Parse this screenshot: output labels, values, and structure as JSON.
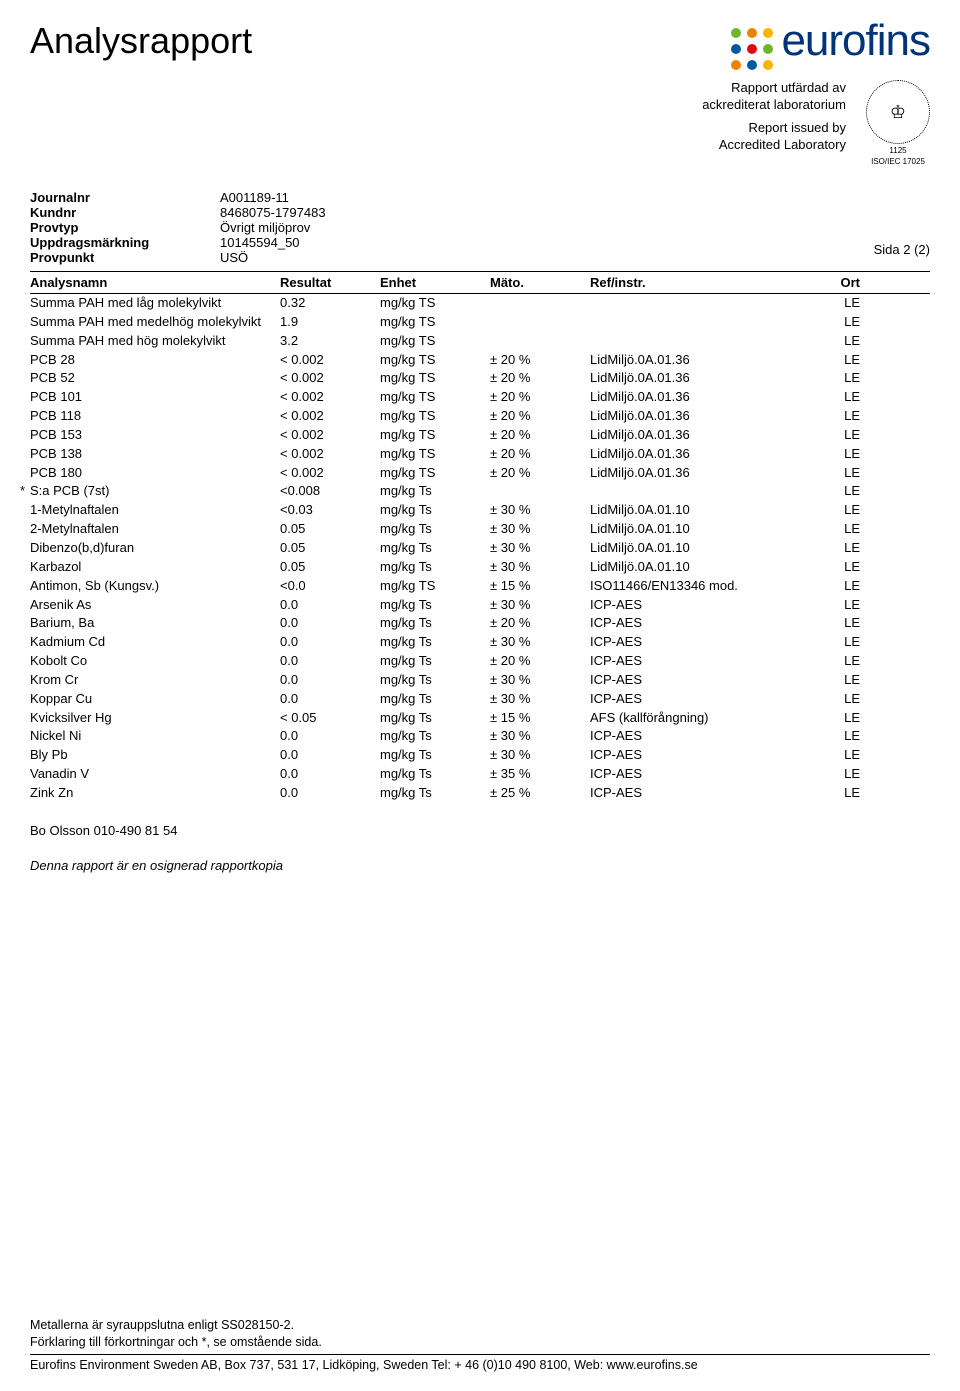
{
  "title": "Analysrapport",
  "logo": {
    "text": "eurofins",
    "text_color": "#003478",
    "dot_colors": [
      "#6fb52c",
      "#f08000",
      "#f7b500",
      "#005aa0",
      "#e30613",
      "#6fb52c",
      "#f08000",
      "#005aa0",
      "#f7b500"
    ]
  },
  "subheader": {
    "line1": "Rapport utfärdad av",
    "line2": "ackrediterat laboratorium",
    "line3": "Report issued by",
    "line4": "Accredited Laboratory",
    "accred_top": "SWEDAC",
    "accred_center": "♔",
    "accred_sub1": "1125",
    "accred_sub2": "ISO/IEC 17025"
  },
  "meta": [
    {
      "label": "Journalnr",
      "value": "A001189-11"
    },
    {
      "label": "Kundnr",
      "value": "8468075-1797483"
    },
    {
      "label": "Provtyp",
      "value": "Övrigt miljöprov"
    },
    {
      "label": "Uppdragsmärkning",
      "value": "10145594_50"
    },
    {
      "label": "Provpunkt",
      "value": "USÖ"
    }
  ],
  "page_num": "Sida 2 (2)",
  "columns": {
    "name": "Analysnamn",
    "res": "Resultat",
    "unit": "Enhet",
    "mato": "Mäto.",
    "ref": "Ref/instr.",
    "ort": "Ort"
  },
  "rows": [
    {
      "star": "",
      "name": "Summa PAH med låg molekylvikt",
      "res": "0.32",
      "unit": "mg/kg TS",
      "mato": "",
      "ref": "",
      "ort": "LE"
    },
    {
      "star": "",
      "name": "Summa PAH med medelhög molekylvikt",
      "res": "1.9",
      "unit": "mg/kg TS",
      "mato": "",
      "ref": "",
      "ort": "LE"
    },
    {
      "star": "",
      "name": "Summa PAH med hög molekylvikt",
      "res": "3.2",
      "unit": "mg/kg TS",
      "mato": "",
      "ref": "",
      "ort": "LE"
    },
    {
      "star": "",
      "name": "PCB 28",
      "res": "< 0.002",
      "unit": "mg/kg TS",
      "mato": "± 20 %",
      "ref": "LidMiljö.0A.01.36",
      "ort": "LE"
    },
    {
      "star": "",
      "name": "PCB 52",
      "res": "< 0.002",
      "unit": "mg/kg TS",
      "mato": "± 20 %",
      "ref": "LidMiljö.0A.01.36",
      "ort": "LE"
    },
    {
      "star": "",
      "name": "PCB 101",
      "res": "< 0.002",
      "unit": "mg/kg TS",
      "mato": "± 20 %",
      "ref": "LidMiljö.0A.01.36",
      "ort": "LE"
    },
    {
      "star": "",
      "name": "PCB 118",
      "res": "< 0.002",
      "unit": "mg/kg TS",
      "mato": "± 20 %",
      "ref": "LidMiljö.0A.01.36",
      "ort": "LE"
    },
    {
      "star": "",
      "name": "PCB 153",
      "res": "< 0.002",
      "unit": "mg/kg TS",
      "mato": "± 20 %",
      "ref": "LidMiljö.0A.01.36",
      "ort": "LE"
    },
    {
      "star": "",
      "name": "PCB 138",
      "res": "< 0.002",
      "unit": "mg/kg TS",
      "mato": "± 20 %",
      "ref": "LidMiljö.0A.01.36",
      "ort": "LE"
    },
    {
      "star": "",
      "name": "PCB 180",
      "res": "< 0.002",
      "unit": "mg/kg TS",
      "mato": "± 20 %",
      "ref": "LidMiljö.0A.01.36",
      "ort": "LE"
    },
    {
      "star": "*",
      "name": "S:a PCB (7st)",
      "res": "<0.008",
      "unit": "mg/kg Ts",
      "mato": "",
      "ref": "",
      "ort": "LE"
    },
    {
      "star": "",
      "name": "1-Metylnaftalen",
      "res": "<0.03",
      "unit": "mg/kg Ts",
      "mato": "± 30 %",
      "ref": "LidMiljö.0A.01.10",
      "ort": "LE"
    },
    {
      "star": "",
      "name": "2-Metylnaftalen",
      "res": "0.05",
      "unit": "mg/kg Ts",
      "mato": "± 30 %",
      "ref": "LidMiljö.0A.01.10",
      "ort": "LE"
    },
    {
      "star": "",
      "name": "Dibenzo(b,d)furan",
      "res": "0.05",
      "unit": "mg/kg Ts",
      "mato": "± 30 %",
      "ref": "LidMiljö.0A.01.10",
      "ort": "LE"
    },
    {
      "star": "",
      "name": "Karbazol",
      "res": "0.05",
      "unit": "mg/kg Ts",
      "mato": "± 30 %",
      "ref": "LidMiljö.0A.01.10",
      "ort": "LE"
    },
    {
      "star": "",
      "name": "Antimon, Sb (Kungsv.)",
      "res": "<0.0",
      "unit": "mg/kg TS",
      "mato": "± 15 %",
      "ref": "ISO11466/EN13346 mod.",
      "ort": "LE"
    },
    {
      "star": "",
      "name": "Arsenik As",
      "res": "0.0",
      "unit": "mg/kg Ts",
      "mato": "± 30 %",
      "ref": "ICP-AES",
      "ort": "LE"
    },
    {
      "star": "",
      "name": "Barium, Ba",
      "res": "0.0",
      "unit": "mg/kg Ts",
      "mato": "± 20 %",
      "ref": "ICP-AES",
      "ort": "LE"
    },
    {
      "star": "",
      "name": "Kadmium Cd",
      "res": "0.0",
      "unit": "mg/kg Ts",
      "mato": "± 30 %",
      "ref": "ICP-AES",
      "ort": "LE"
    },
    {
      "star": "",
      "name": "Kobolt Co",
      "res": "0.0",
      "unit": "mg/kg Ts",
      "mato": "± 20 %",
      "ref": "ICP-AES",
      "ort": "LE"
    },
    {
      "star": "",
      "name": "Krom Cr",
      "res": "0.0",
      "unit": "mg/kg Ts",
      "mato": "± 30 %",
      "ref": "ICP-AES",
      "ort": "LE"
    },
    {
      "star": "",
      "name": "Koppar Cu",
      "res": "0.0",
      "unit": "mg/kg Ts",
      "mato": "± 30 %",
      "ref": "ICP-AES",
      "ort": "LE"
    },
    {
      "star": "",
      "name": "Kvicksilver Hg",
      "res": "< 0.05",
      "unit": "mg/kg Ts",
      "mato": "± 15 %",
      "ref": "AFS (kallförångning)",
      "ort": "LE"
    },
    {
      "star": "",
      "name": "Nickel Ni",
      "res": "0.0",
      "unit": "mg/kg Ts",
      "mato": "± 30 %",
      "ref": "ICP-AES",
      "ort": "LE"
    },
    {
      "star": "",
      "name": "Bly Pb",
      "res": "0.0",
      "unit": "mg/kg Ts",
      "mato": "± 30 %",
      "ref": "ICP-AES",
      "ort": "LE"
    },
    {
      "star": "",
      "name": "Vanadin V",
      "res": "0.0",
      "unit": "mg/kg Ts",
      "mato": "± 35 %",
      "ref": "ICP-AES",
      "ort": "LE"
    },
    {
      "star": "",
      "name": "Zink Zn",
      "res": "0.0",
      "unit": "mg/kg Ts",
      "mato": "± 25 %",
      "ref": "ICP-AES",
      "ort": "LE"
    }
  ],
  "contact": "Bo Olsson 010-490 81 54",
  "unsigned_note": "Denna rapport är en osignerad rapportkopia",
  "footnote1": "Metallerna är syrauppslutna enligt SS028150-2.",
  "footnote2": "Förklaring till förkortningar och *, se omstående sida.",
  "footer": "Eurofins Environment Sweden AB, Box 737, 531 17, Lidköping, Sweden Tel: + 46 (0)10 490 8100, Web: www.eurofins.se"
}
